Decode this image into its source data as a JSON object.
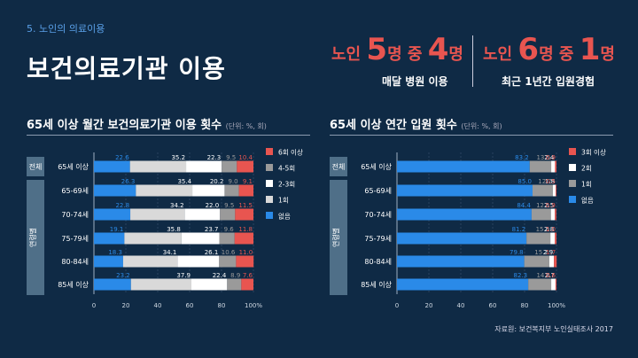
{
  "section_label": "5. 노인의 의료이용",
  "page_title": "보건의료기관 이용",
  "headline1": {
    "pre": "노인 ",
    "n1": "5",
    "mid": "명 중 ",
    "n2": "4",
    "post": "명",
    "sub": "매달 병원 이용"
  },
  "headline2": {
    "pre": "노인 ",
    "n1": "6",
    "mid": "명 중 ",
    "n2": "1",
    "post": "명",
    "sub": "최근 1년간 입원경험"
  },
  "colors": {
    "blue": "#2a8ae8",
    "gray": "#9a9a9a",
    "white": "#ffffff",
    "lightgray": "#d9d9d9",
    "red": "#e85550"
  },
  "source": "자료원: 보건복지부 노인실태조사 2017",
  "chart_data": [
    {
      "type": "bar",
      "stacked": true,
      "orientation": "horizontal",
      "title": "65세 이상 월간 보건의료기관 이용 횟수",
      "unit_note": "(단위: %, 회)",
      "group_labels": {
        "total": "전체",
        "age": "연령별"
      },
      "categories": [
        "65세 이상",
        "65-69세",
        "70-74세",
        "75-79세",
        "80-84세",
        "85세 이상"
      ],
      "series": [
        {
          "name": "없음",
          "color": "#2a8ae8",
          "values": [
            22.6,
            26.3,
            22.8,
            19.1,
            18.3,
            23.2
          ]
        },
        {
          "name": "1회",
          "color": "#d9d9d9",
          "values": [
            35.2,
            35.4,
            34.2,
            35.8,
            34.1,
            37.9
          ]
        },
        {
          "name": "2-3회",
          "color": "#ffffff",
          "values": [
            22.3,
            20.2,
            22.0,
            23.7,
            26.1,
            22.4
          ]
        },
        {
          "name": "4-5회",
          "color": "#9a9a9a",
          "values": [
            9.5,
            9.0,
            9.5,
            9.6,
            10.6,
            8.9
          ]
        },
        {
          "name": "6회 이상",
          "color": "#e85550",
          "values": [
            10.4,
            9.1,
            11.5,
            11.8,
            11.0,
            7.6
          ]
        }
      ],
      "legend_order": [
        "6회 이상",
        "4-5회",
        "2-3회",
        "1회",
        "없음"
      ],
      "xlim": [
        0,
        100
      ],
      "xticks": [
        "0",
        "20",
        "40",
        "60",
        "80",
        "100%"
      ]
    },
    {
      "type": "bar",
      "stacked": true,
      "orientation": "horizontal",
      "title": "65세 이상 연간 입원 횟수",
      "unit_note": "(단위: %, 회)",
      "group_labels": {
        "total": "전체",
        "age": "연령별"
      },
      "categories": [
        "65세 이상",
        "65-69세",
        "70-74세",
        "75-79세",
        "80-84세",
        "85세 이상"
      ],
      "series": [
        {
          "name": "없음",
          "color": "#2a8ae8",
          "values": [
            83.2,
            85.0,
            84.4,
            81.2,
            79.8,
            82.3
          ]
        },
        {
          "name": "1회",
          "color": "#9a9a9a",
          "values": [
            13.5,
            12.7,
            12.1,
            15.0,
            15.7,
            14.4
          ]
        },
        {
          "name": "2회",
          "color": "#ffffff",
          "values": [
            2.4,
            1.8,
            2.5,
            2.8,
            2.9,
            2.7
          ]
        },
        {
          "name": "3회 이상",
          "color": "#e85550",
          "values": [
            0.9,
            0.5,
            0.9,
            1.0,
            1.7,
            0.6
          ]
        }
      ],
      "legend_order": [
        "3회 이상",
        "2회",
        "1회",
        "없음"
      ],
      "xlim": [
        0,
        100
      ],
      "xticks": [
        "0",
        "20",
        "40",
        "60",
        "80",
        "100%"
      ]
    }
  ]
}
